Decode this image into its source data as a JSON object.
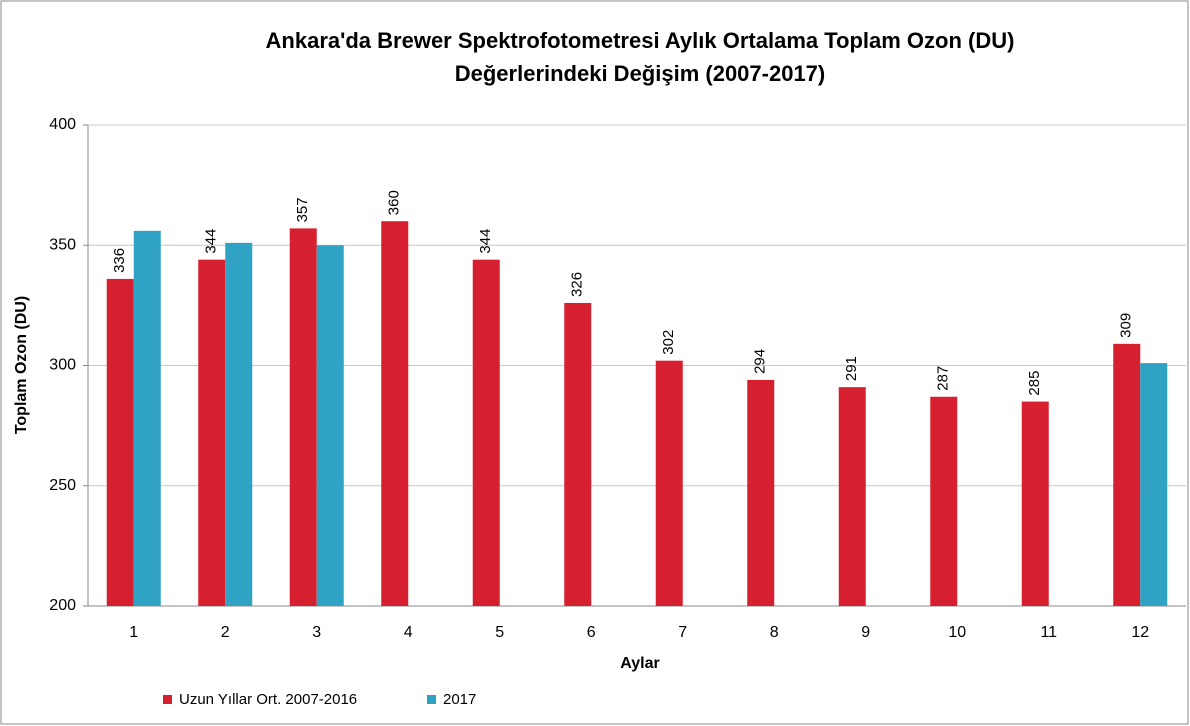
{
  "chart_data": {
    "type": "bar",
    "title": [
      "Ankara'da  Brewer Spektrofotometresi Aylık Ortalama Toplam Ozon (DU)",
      "Değerlerindeki Değişim (2007-2017)"
    ],
    "x_label": "Aylar",
    "y_label": "Toplam Ozon (DU)",
    "categories": [
      "1",
      "2",
      "3",
      "4",
      "5",
      "6",
      "7",
      "8",
      "9",
      "10",
      "11",
      "12"
    ],
    "series": [
      {
        "name": "Uzun Yıllar Ort. 2007-2016",
        "color": "#d7202f",
        "values": [
          336,
          344,
          357,
          360,
          344,
          326,
          302,
          294,
          291,
          287,
          285,
          309
        ],
        "show_labels": true
      },
      {
        "name": "2017",
        "color": "#30a2c3",
        "values": [
          356,
          351,
          350,
          null,
          null,
          null,
          null,
          null,
          null,
          null,
          null,
          301
        ],
        "show_labels": false
      }
    ],
    "ylim": [
      200,
      400
    ],
    "yticks": [
      200,
      250,
      300,
      350,
      400
    ],
    "grid": true,
    "legend": "bottom-left"
  }
}
